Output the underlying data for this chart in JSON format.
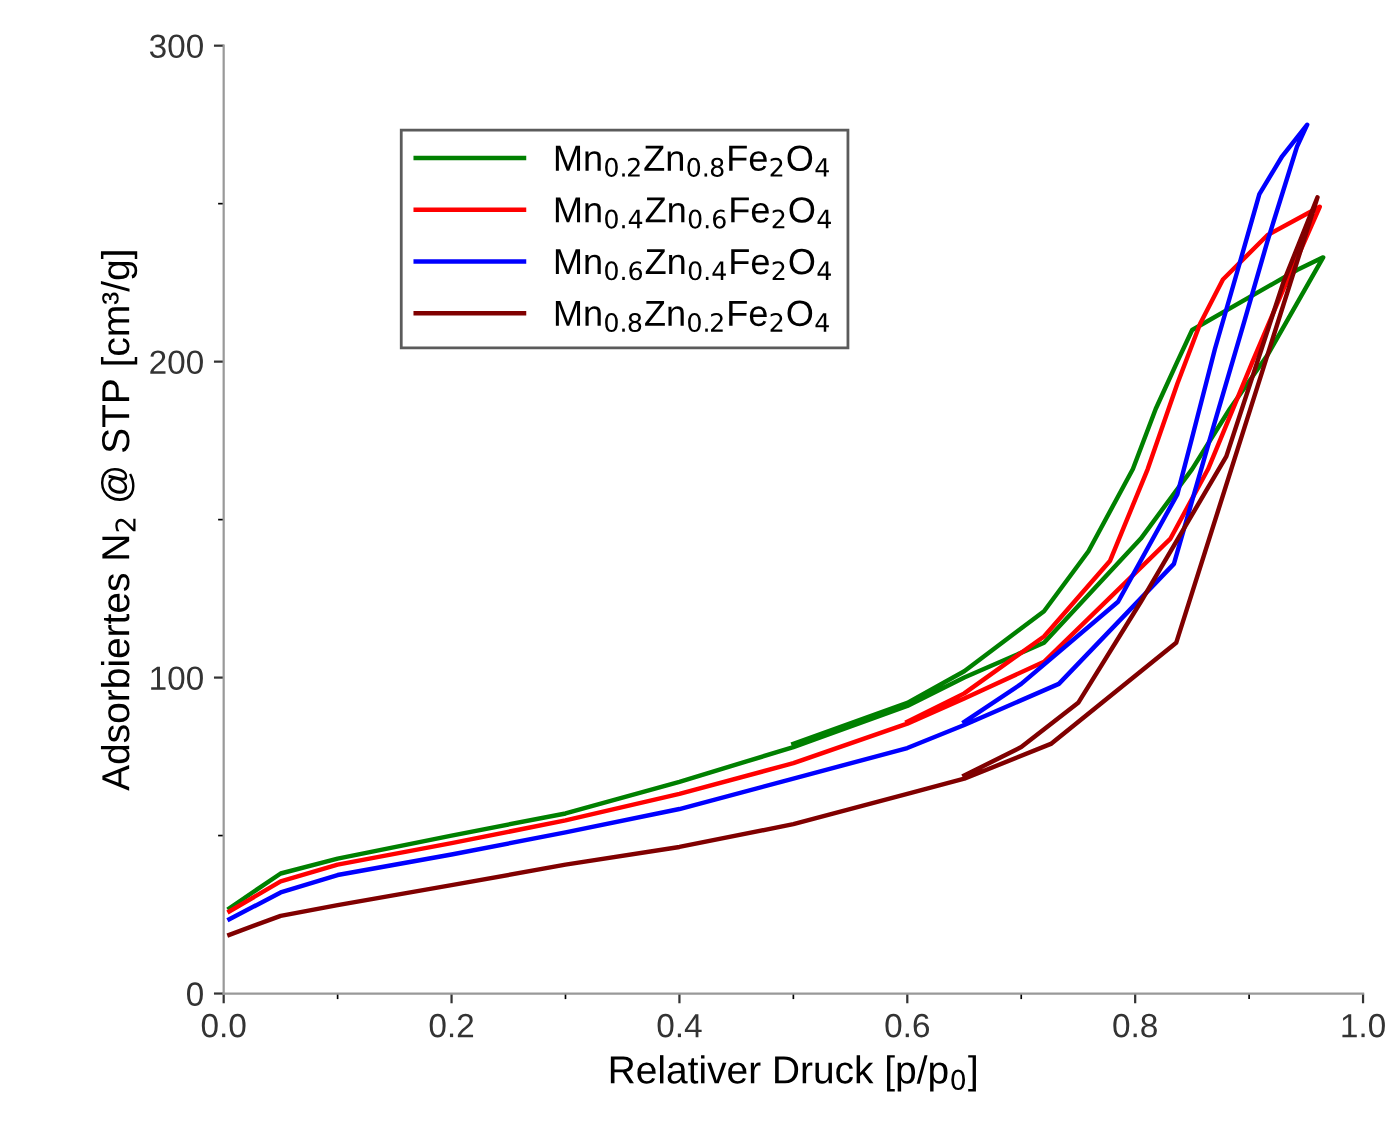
{
  "chart_data": {
    "type": "line",
    "xlabel": "Relativer Druck [p/p$_{0}$]",
    "ylabel": "Adsorbiertes N$_{2}$ @ STP [cm³/g]",
    "xlim": [
      0,
      1.0
    ],
    "ylim": [
      0,
      300
    ],
    "xticks": [
      {
        "value": 0,
        "label": "0.0"
      },
      0.2,
      0.4,
      0.6,
      0.8,
      {
        "value": 1.0,
        "label": "1.0"
      }
    ],
    "yticks": [
      0,
      100,
      200,
      300
    ],
    "grid": false,
    "legend": "top left",
    "marker": "none",
    "line_style": "solid",
    "series": [
      {
        "name": "Mn$_{0.2}$Zn$_{0.8}$Fe$_{2}$O$_{4}$",
        "color": "#008000",
        "x": [
          0.005,
          0.05,
          0.1,
          0.2,
          0.3,
          0.4,
          0.5,
          0.6,
          0.65,
          0.72,
          0.805,
          0.85,
          0.883,
          0.916,
          0.965,
          0.942,
          0.85,
          0.837,
          0.818,
          0.798,
          0.759,
          0.72,
          0.65,
          0.6,
          0.5
        ],
        "values": [
          27,
          38,
          42.7,
          50,
          57,
          67,
          78,
          91,
          100,
          111,
          144,
          166,
          185,
          202,
          233,
          229,
          210,
          200,
          185,
          166,
          140,
          121,
          102,
          92,
          79
        ]
      },
      {
        "name": "Mn$_{0.4}$Zn$_{0.6}$Fe$_{2}$O$_{4}$",
        "color": "#ff0000",
        "x": [
          0.005,
          0.05,
          0.1,
          0.2,
          0.3,
          0.4,
          0.5,
          0.6,
          0.65,
          0.72,
          0.831,
          0.864,
          0.903,
          0.929,
          0.962,
          0.916,
          0.877,
          0.857,
          0.837,
          0.811,
          0.778,
          0.72,
          0.65,
          0.6
        ],
        "values": [
          26,
          35.5,
          40.8,
          47.6,
          54.8,
          63.2,
          72.9,
          85.4,
          93.4,
          105,
          144,
          166,
          200,
          222,
          249,
          240,
          226,
          212,
          193,
          166,
          137,
          113,
          95,
          86
        ]
      },
      {
        "name": "Mn$_{0.6}$Zn$_{0.4}$Fe$_{2}$O$_{4}$",
        "color": "#0000ff",
        "x": [
          0.005,
          0.05,
          0.1,
          0.2,
          0.3,
          0.4,
          0.5,
          0.6,
          0.65,
          0.733,
          0.834,
          0.87,
          0.896,
          0.916,
          0.942,
          0.951,
          0.929,
          0.909,
          0.89,
          0.87,
          0.85,
          0.837,
          0.785,
          0.7,
          0.65
        ],
        "values": [
          23.5,
          32,
          37.5,
          44,
          51,
          58.4,
          68,
          77.7,
          85,
          98,
          136,
          181,
          213,
          238,
          268,
          275,
          265,
          253,
          229,
          204,
          176,
          158,
          124,
          98,
          86
        ]
      },
      {
        "name": "Mn$_{0.8}$Zn$_{0.2}$Fe$_{2}$O$_{4}$",
        "color": "#800000",
        "x": [
          0.005,
          0.05,
          0.1,
          0.2,
          0.3,
          0.4,
          0.5,
          0.6,
          0.65,
          0.726,
          0.836,
          0.96,
          0.93,
          0.88,
          0.805,
          0.75,
          0.7,
          0.65
        ],
        "values": [
          18.6,
          24.6,
          28,
          34.3,
          40.8,
          46.4,
          53.6,
          63.2,
          68,
          79,
          111,
          252,
          225,
          170,
          124,
          92,
          78,
          69
        ]
      }
    ]
  }
}
